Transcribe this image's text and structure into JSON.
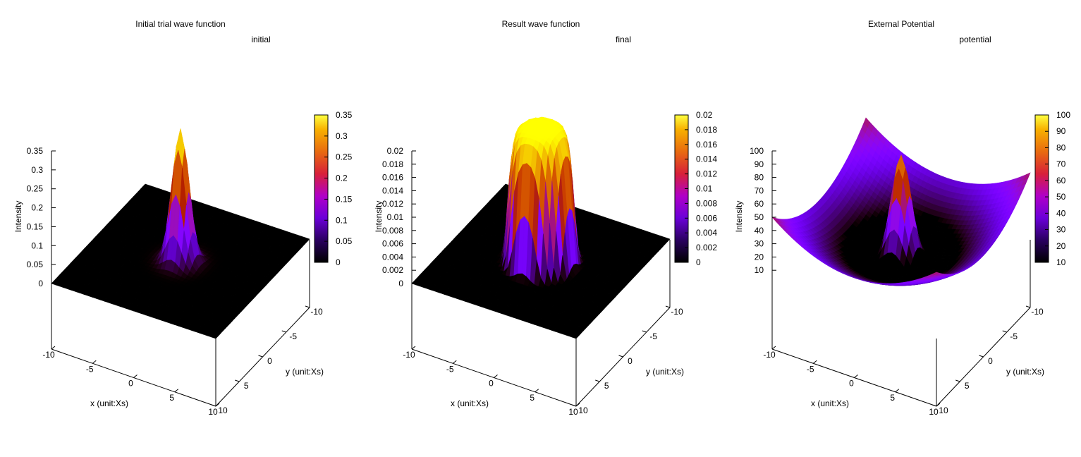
{
  "chart_data": [
    {
      "type": "surface",
      "title": "Initial trial wave function",
      "key": "initial",
      "xlabel": "x (unit:Xs)",
      "ylabel": "y (unit:Xs)",
      "zlabel": "Intensity",
      "xlim": [
        -10,
        10
      ],
      "ylim": [
        -10,
        10
      ],
      "zlim": [
        0,
        0.35
      ],
      "xticks": [
        "-10",
        "-5",
        "0",
        "5",
        "10"
      ],
      "yticks": [
        "-10",
        "-5",
        "0",
        "5",
        "10"
      ],
      "zticks": [
        "0",
        "0.05",
        "0.1",
        "0.15",
        "0.2",
        "0.25",
        "0.3",
        "0.35"
      ],
      "cbrange": [
        0,
        0.35
      ],
      "cbticks": [
        "0",
        "0.05",
        "0.1",
        "0.15",
        "0.2",
        "0.25",
        "0.3",
        "0.35"
      ],
      "shape": "gaussian peak centered at origin",
      "peak": 0.35,
      "width": 0.9
    },
    {
      "type": "surface",
      "title": "Result wave function",
      "key": "final",
      "xlabel": "x (unit:Xs)",
      "ylabel": "y (unit:Xs)",
      "zlabel": "Intensity",
      "xlim": [
        -10,
        10
      ],
      "ylim": [
        -10,
        10
      ],
      "zlim": [
        0,
        0.02
      ],
      "xticks": [
        "-10",
        "-5",
        "0",
        "5",
        "10"
      ],
      "yticks": [
        "-10",
        "-5",
        "0",
        "5",
        "10"
      ],
      "zticks": [
        "0",
        "0.002",
        "0.004",
        "0.006",
        "0.008",
        "0.01",
        "0.012",
        "0.014",
        "0.016",
        "0.018",
        "0.02"
      ],
      "cbrange": [
        0,
        0.02
      ],
      "cbticks": [
        "0",
        "0.002",
        "0.004",
        "0.006",
        "0.008",
        "0.01",
        "0.012",
        "0.014",
        "0.016",
        "0.018",
        "0.02"
      ],
      "shape": "flat-topped ring (crater) centered at origin",
      "peak": 0.02,
      "radius": 3.5
    },
    {
      "type": "surface",
      "title": "External Potential",
      "key": "potential",
      "xlabel": "x (unit:Xs)",
      "ylabel": "y (unit:Xs)",
      "zlabel": "Intensity",
      "xlim": [
        -10,
        10
      ],
      "ylim": [
        -10,
        10
      ],
      "zlim": [
        0,
        100
      ],
      "xticks": [
        "-10",
        "-5",
        "0",
        "5",
        "10"
      ],
      "yticks": [
        "-10",
        "-5",
        "0",
        "5",
        "10"
      ],
      "zticks": [
        "10",
        "20",
        "30",
        "40",
        "50",
        "60",
        "70",
        "80",
        "90",
        "100"
      ],
      "cbrange": [
        10,
        100
      ],
      "cbticks": [
        "10",
        "20",
        "30",
        "40",
        "50",
        "60",
        "70",
        "80",
        "90",
        "100"
      ],
      "shape": "harmonic trap plus central gaussian barrier",
      "min": 0,
      "max": 100
    }
  ]
}
